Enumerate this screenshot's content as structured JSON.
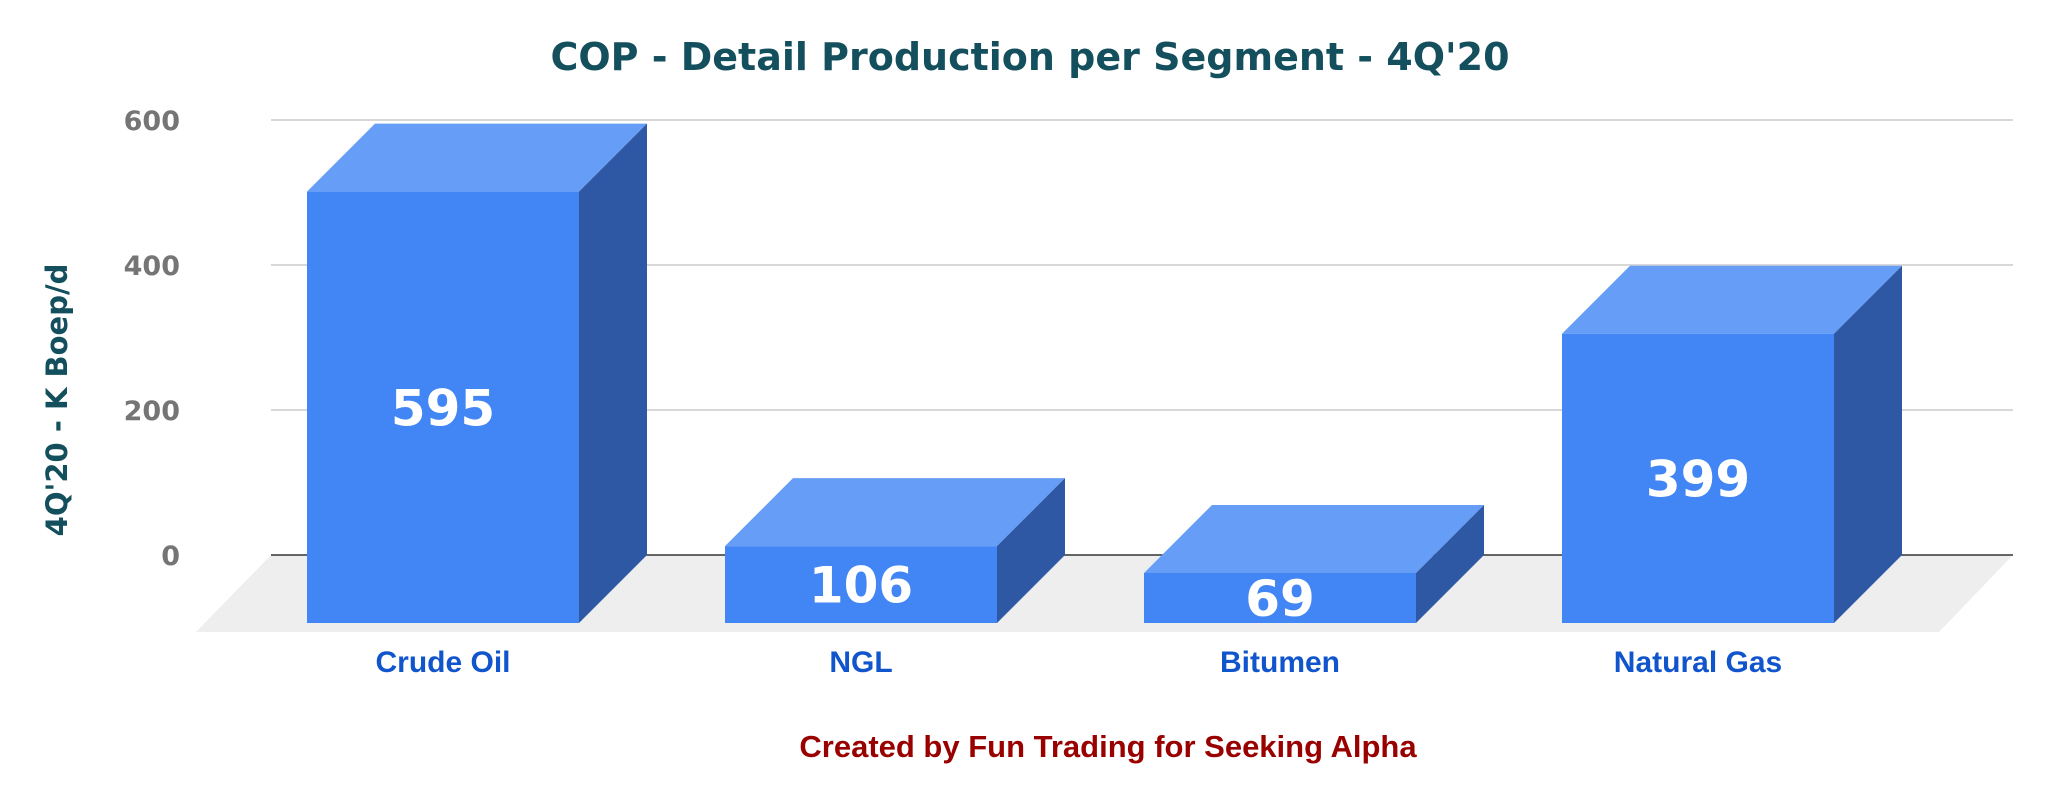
{
  "chart_data": {
    "type": "bar",
    "title": "COP - Detail Production per Segment - 4Q'20",
    "xlabel": "",
    "ylabel": "4Q'20 - K Boep/d",
    "categories": [
      "Crude Oil",
      "NGL",
      "Bitumen",
      "Natural Gas"
    ],
    "values": [
      595,
      106,
      69,
      399
    ],
    "data_labels": [
      "595",
      "106",
      "69",
      "399"
    ],
    "yticks": [
      0,
      200,
      400,
      600
    ],
    "ylim": [
      0,
      600
    ],
    "grid": true,
    "style": "3d-column",
    "credit": "Created by Fun Trading for Seeking Alpha",
    "colors": {
      "bar_front": "#4285f4",
      "bar_top": "#669df6",
      "bar_side": "#2e58a3",
      "floor": "#eeeeee",
      "title": "#134f5c",
      "category_label": "#1155cc",
      "credit": "#990000"
    }
  }
}
